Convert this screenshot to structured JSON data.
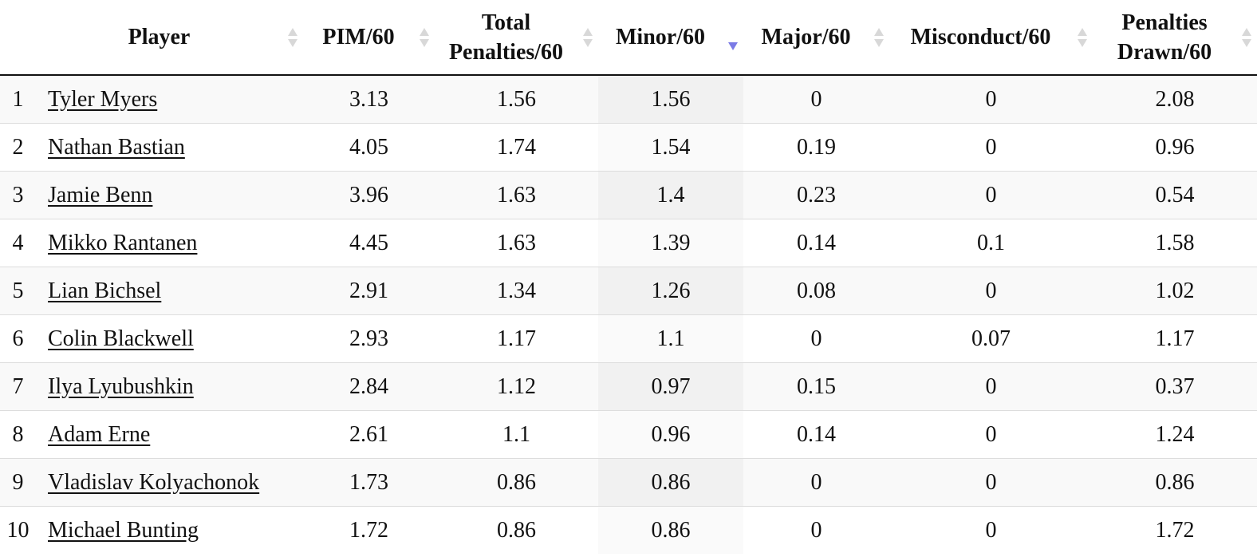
{
  "table": {
    "headers": [
      "Player",
      "PIM/60",
      "Total Penalties/60",
      "Minor/60",
      "Major/60",
      "Misconduct/60",
      "Penalties Drawn/60"
    ],
    "rows": [
      [
        1,
        "Tyler Myers",
        3.13,
        1.56,
        1.56,
        0,
        0,
        2.08
      ],
      [
        2,
        "Nathan Bastian",
        4.05,
        1.74,
        1.54,
        0.19,
        0,
        0.96
      ],
      [
        3,
        "Jamie Benn",
        3.96,
        1.63,
        1.4,
        0.23,
        0,
        0.54
      ],
      [
        4,
        "Mikko Rantanen",
        4.45,
        1.63,
        1.39,
        0.14,
        0.1,
        1.58
      ],
      [
        5,
        "Lian Bichsel",
        2.91,
        1.34,
        1.26,
        0.08,
        0,
        1.02
      ],
      [
        6,
        "Colin Blackwell",
        2.93,
        1.17,
        1.1,
        0,
        0.07,
        1.17
      ],
      [
        7,
        "Ilya Lyubushkin",
        2.84,
        1.12,
        0.97,
        0.15,
        0,
        0.37
      ],
      [
        8,
        "Adam Erne",
        2.61,
        1.1,
        0.96,
        0.14,
        0,
        1.24
      ],
      [
        9,
        "Vladislav Kolyachonok",
        1.73,
        0.86,
        0.86,
        0,
        0,
        0.86
      ],
      [
        10,
        "Michael Bunting",
        1.72,
        0.86,
        0.86,
        0,
        0,
        1.72
      ]
    ]
  }
}
